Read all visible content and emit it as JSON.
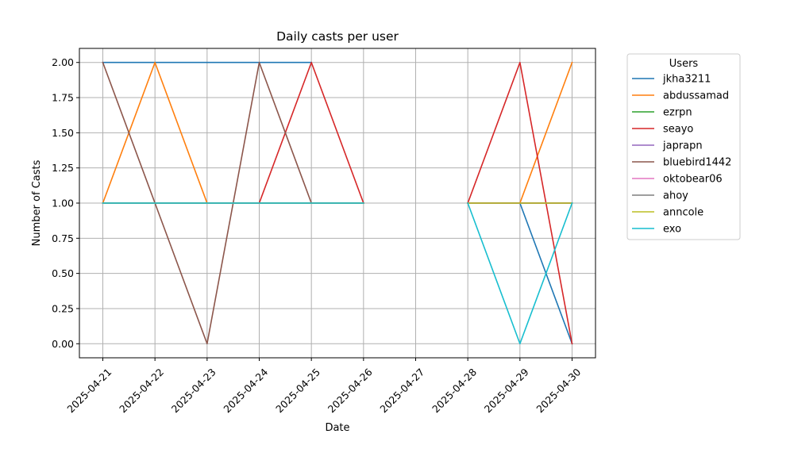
{
  "chart_data": {
    "type": "line",
    "title": "Daily casts per user",
    "xlabel": "Date",
    "ylabel": "Number of Casts",
    "x": [
      "2025-04-21",
      "2025-04-22",
      "2025-04-23",
      "2025-04-24",
      "2025-04-25",
      "2025-04-26",
      "2025-04-27",
      "2025-04-28",
      "2025-04-29",
      "2025-04-30"
    ],
    "ylim": [
      -0.1,
      2.1
    ],
    "yticks": [
      "0.00",
      "0.25",
      "0.50",
      "0.75",
      "1.00",
      "1.25",
      "1.50",
      "1.75",
      "2.00"
    ],
    "grid": true,
    "legend_title": "Users",
    "legend_position": "outside-right",
    "series": [
      {
        "name": "jkha3211",
        "color": "#1f77b4",
        "values": [
          2,
          2,
          2,
          2,
          2,
          null,
          null,
          1,
          1,
          0
        ]
      },
      {
        "name": "abdussamad",
        "color": "#ff7f0e",
        "values": [
          1,
          2,
          1,
          1,
          1,
          1,
          null,
          1,
          1,
          2
        ]
      },
      {
        "name": "ezrpn",
        "color": "#2ca02c",
        "values": [
          1,
          1,
          1,
          1,
          1,
          1,
          null,
          1,
          1,
          1
        ]
      },
      {
        "name": "seayo",
        "color": "#d62728",
        "values": [
          1,
          1,
          1,
          1,
          2,
          1,
          null,
          1,
          2,
          0
        ]
      },
      {
        "name": "japrapn",
        "color": "#9467bd",
        "values": [
          1,
          1,
          1,
          1,
          1,
          1,
          null,
          1,
          1,
          1
        ]
      },
      {
        "name": "bluebird1442",
        "color": "#8c564b",
        "values": [
          2,
          1,
          0,
          2,
          1,
          1,
          null,
          1,
          1,
          1
        ]
      },
      {
        "name": "oktobear06",
        "color": "#e377c2",
        "values": [
          1,
          1,
          1,
          1,
          1,
          1,
          null,
          1,
          1,
          1
        ]
      },
      {
        "name": "ahoy",
        "color": "#7f7f7f",
        "values": [
          1,
          1,
          1,
          1,
          1,
          1,
          null,
          1,
          1,
          1
        ]
      },
      {
        "name": "anncole",
        "color": "#bcbd22",
        "values": [
          1,
          1,
          1,
          1,
          1,
          1,
          null,
          1,
          1,
          1
        ]
      },
      {
        "name": "exo",
        "color": "#17becf",
        "values": [
          1,
          1,
          1,
          1,
          1,
          1,
          null,
          1,
          0,
          1
        ]
      }
    ]
  }
}
